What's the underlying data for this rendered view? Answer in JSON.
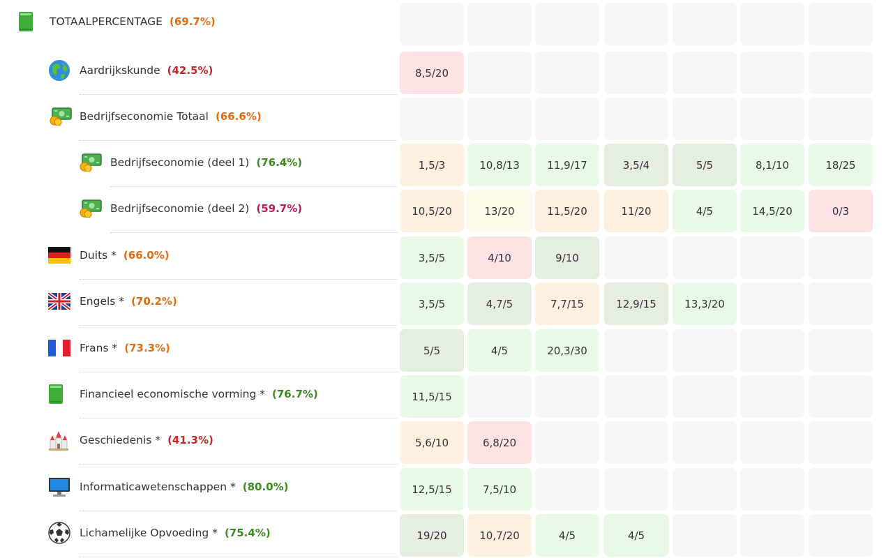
{
  "colors": {
    "pct_red": "#c62828",
    "pct_orange": "#e36b13",
    "pct_green": "#3a8a1e",
    "pct_magenta": "#c2185b"
  },
  "rows": [
    {
      "name": "TOTAALPERCENTAGE",
      "pct": "(69.7%)",
      "icon": "green-book-icon",
      "level": 0,
      "pct_class": "pct_orange",
      "cells": [
        "",
        "",
        "",
        "",
        "",
        "",
        ""
      ],
      "tones": [
        "e",
        "e",
        "e",
        "e",
        "e",
        "e",
        "e"
      ]
    },
    {
      "name": "Aardrijkskunde",
      "pct": "(42.5%)",
      "icon": "globe-icon",
      "level": 1,
      "pct_class": "pct_red",
      "cells": [
        "8,5/20",
        "",
        "",
        "",
        "",
        "",
        ""
      ],
      "tones": [
        "r",
        "e",
        "e",
        "e",
        "e",
        "e",
        "e"
      ]
    },
    {
      "name": "Bedrijfseconomie Totaal",
      "pct": "(66.6%)",
      "icon": "money-icon",
      "level": 1,
      "pct_class": "pct_orange",
      "cells": [
        "",
        "",
        "",
        "",
        "",
        "",
        ""
      ],
      "tones": [
        "e",
        "e",
        "e",
        "e",
        "e",
        "e",
        "e"
      ]
    },
    {
      "name": "Bedrijfseconomie (deel 1)",
      "pct": "(76.4%)",
      "icon": "money-icon",
      "level": 2,
      "pct_class": "pct_green",
      "cells": [
        "1,5/3",
        "10,8/13",
        "11,9/17",
        "3,5/4",
        "5/5",
        "8,1/10",
        "18/25"
      ],
      "tones": [
        "o",
        "g",
        "g",
        "d",
        "d",
        "g",
        "g"
      ]
    },
    {
      "name": "Bedrijfseconomie (deel 2)",
      "pct": "(59.7%)",
      "icon": "money-icon",
      "level": 2,
      "pct_class": "pct_magenta",
      "cells": [
        "10,5/20",
        "13/20",
        "11,5/20",
        "11/20",
        "4/5",
        "14,5/20",
        "0/3"
      ],
      "tones": [
        "o",
        "y",
        "o",
        "o",
        "g",
        "g",
        "r"
      ]
    },
    {
      "name": "Duits *",
      "pct": "(66.0%)",
      "icon": "german-flag-icon",
      "level": 1,
      "pct_class": "pct_orange",
      "cells": [
        "3,5/5",
        "4/10",
        "9/10",
        "",
        "",
        "",
        ""
      ],
      "tones": [
        "g",
        "r",
        "d",
        "e",
        "e",
        "e",
        "e"
      ]
    },
    {
      "name": "Engels *",
      "pct": "(70.2%)",
      "icon": "uk-flag-icon",
      "level": 1,
      "pct_class": "pct_orange",
      "cells": [
        "3,5/5",
        "4,7/5",
        "7,7/15",
        "12,9/15",
        "13,3/20",
        "",
        ""
      ],
      "tones": [
        "g",
        "d",
        "o",
        "d",
        "g",
        "e",
        "e"
      ]
    },
    {
      "name": "Frans *",
      "pct": "(73.3%)",
      "icon": "french-flag-icon",
      "level": 1,
      "pct_class": "pct_orange",
      "cells": [
        "5/5",
        "4/5",
        "20,3/30",
        "",
        "",
        "",
        ""
      ],
      "tones": [
        "d",
        "g",
        "g",
        "e",
        "e",
        "e",
        "e"
      ]
    },
    {
      "name": "Financieel economische vorming *",
      "pct": "(76.7%)",
      "icon": "green-book-icon",
      "level": 1,
      "pct_class": "pct_green",
      "cells": [
        "11,5/15",
        "",
        "",
        "",
        "",
        "",
        ""
      ],
      "tones": [
        "g",
        "e",
        "e",
        "e",
        "e",
        "e",
        "e"
      ]
    },
    {
      "name": "Geschiedenis *",
      "pct": "(41.3%)",
      "icon": "castle-icon",
      "level": 1,
      "pct_class": "pct_red",
      "cells": [
        "5,6/10",
        "6,8/20",
        "",
        "",
        "",
        "",
        ""
      ],
      "tones": [
        "o",
        "r",
        "e",
        "e",
        "e",
        "e",
        "e"
      ]
    },
    {
      "name": "Informaticawetenschappen *",
      "pct": "(80.0%)",
      "icon": "computer-icon",
      "level": 1,
      "pct_class": "pct_green",
      "cells": [
        "12,5/15",
        "7,5/10",
        "",
        "",
        "",
        "",
        ""
      ],
      "tones": [
        "g",
        "g",
        "e",
        "e",
        "e",
        "e",
        "e"
      ]
    },
    {
      "name": "Lichamelijke Opvoeding *",
      "pct": "(75.4%)",
      "icon": "soccer-ball-icon",
      "level": 1,
      "pct_class": "pct_green",
      "cells": [
        "19/20",
        "10,7/20",
        "4/5",
        "4/5",
        "",
        "",
        ""
      ],
      "tones": [
        "d",
        "o",
        "g",
        "g",
        "e",
        "e",
        "e"
      ]
    }
  ]
}
